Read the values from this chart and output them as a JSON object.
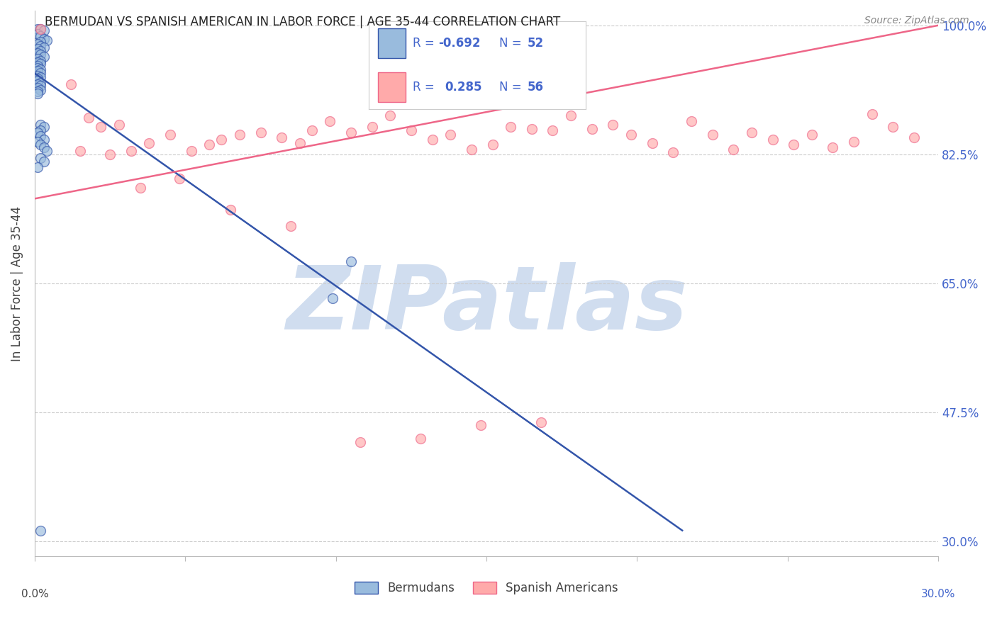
{
  "title": "BERMUDAN VS SPANISH AMERICAN IN LABOR FORCE | AGE 35-44 CORRELATION CHART",
  "source": "Source: ZipAtlas.com",
  "ylabel": "In Labor Force | Age 35-44",
  "ytick_labels": [
    "100.0%",
    "82.5%",
    "65.0%",
    "47.5%",
    "30.0%"
  ],
  "ytick_values": [
    1.0,
    0.825,
    0.65,
    0.475,
    0.3
  ],
  "xlim": [
    0.0,
    0.3
  ],
  "ylim": [
    0.28,
    1.02
  ],
  "legend_r_blue": "-0.692",
  "legend_n_blue": "52",
  "legend_r_pink": "0.285",
  "legend_n_pink": "56",
  "blue_color": "#99BBDD",
  "pink_color": "#FFAAAA",
  "line_blue": "#3355AA",
  "line_pink": "#EE6688",
  "label_color": "#4466CC",
  "watermark": "ZIPatlas",
  "watermark_color": "#D0DDEF",
  "blue_trend_x": [
    0.0,
    0.215
  ],
  "blue_trend_y": [
    0.935,
    0.315
  ],
  "pink_trend_x": [
    0.0,
    0.3
  ],
  "pink_trend_y": [
    0.765,
    1.0
  ],
  "bermudans_x": [
    0.001,
    0.002,
    0.003,
    0.001,
    0.002,
    0.003,
    0.004,
    0.002,
    0.001,
    0.002,
    0.003,
    0.001,
    0.002,
    0.001,
    0.002,
    0.003,
    0.001,
    0.002,
    0.001,
    0.002,
    0.001,
    0.001,
    0.002,
    0.001,
    0.002,
    0.001,
    0.002,
    0.001,
    0.001,
    0.002,
    0.001,
    0.002,
    0.001,
    0.002,
    0.001,
    0.001,
    0.002,
    0.003,
    0.002,
    0.001,
    0.002,
    0.003,
    0.001,
    0.002,
    0.003,
    0.004,
    0.002,
    0.003,
    0.001,
    0.099,
    0.105,
    0.002
  ],
  "bermudans_y": [
    0.995,
    0.995,
    0.993,
    0.988,
    0.985,
    0.982,
    0.98,
    0.978,
    0.975,
    0.972,
    0.97,
    0.968,
    0.965,
    0.962,
    0.96,
    0.958,
    0.955,
    0.952,
    0.95,
    0.948,
    0.945,
    0.942,
    0.94,
    0.938,
    0.935,
    0.932,
    0.93,
    0.928,
    0.925,
    0.922,
    0.92,
    0.918,
    0.915,
    0.912,
    0.91,
    0.908,
    0.865,
    0.862,
    0.858,
    0.855,
    0.85,
    0.845,
    0.842,
    0.838,
    0.835,
    0.83,
    0.82,
    0.815,
    0.808,
    0.63,
    0.68,
    0.315
  ],
  "spanish_x": [
    0.002,
    0.012,
    0.018,
    0.022,
    0.028,
    0.032,
    0.038,
    0.045,
    0.052,
    0.058,
    0.062,
    0.068,
    0.075,
    0.082,
    0.088,
    0.092,
    0.098,
    0.105,
    0.112,
    0.118,
    0.125,
    0.132,
    0.138,
    0.145,
    0.152,
    0.158,
    0.165,
    0.172,
    0.178,
    0.185,
    0.192,
    0.198,
    0.205,
    0.212,
    0.218,
    0.225,
    0.232,
    0.238,
    0.245,
    0.252,
    0.258,
    0.265,
    0.272,
    0.278,
    0.285,
    0.292,
    0.015,
    0.025,
    0.035,
    0.048,
    0.065,
    0.085,
    0.108,
    0.128,
    0.148,
    0.168
  ],
  "spanish_y": [
    0.995,
    0.92,
    0.875,
    0.862,
    0.865,
    0.83,
    0.84,
    0.852,
    0.83,
    0.838,
    0.845,
    0.852,
    0.855,
    0.848,
    0.84,
    0.858,
    0.87,
    0.855,
    0.862,
    0.878,
    0.858,
    0.845,
    0.852,
    0.832,
    0.838,
    0.862,
    0.86,
    0.858,
    0.878,
    0.86,
    0.865,
    0.852,
    0.84,
    0.828,
    0.87,
    0.852,
    0.832,
    0.855,
    0.845,
    0.838,
    0.852,
    0.835,
    0.842,
    0.88,
    0.862,
    0.848,
    0.83,
    0.825,
    0.78,
    0.792,
    0.75,
    0.728,
    0.435,
    0.44,
    0.458,
    0.462
  ]
}
